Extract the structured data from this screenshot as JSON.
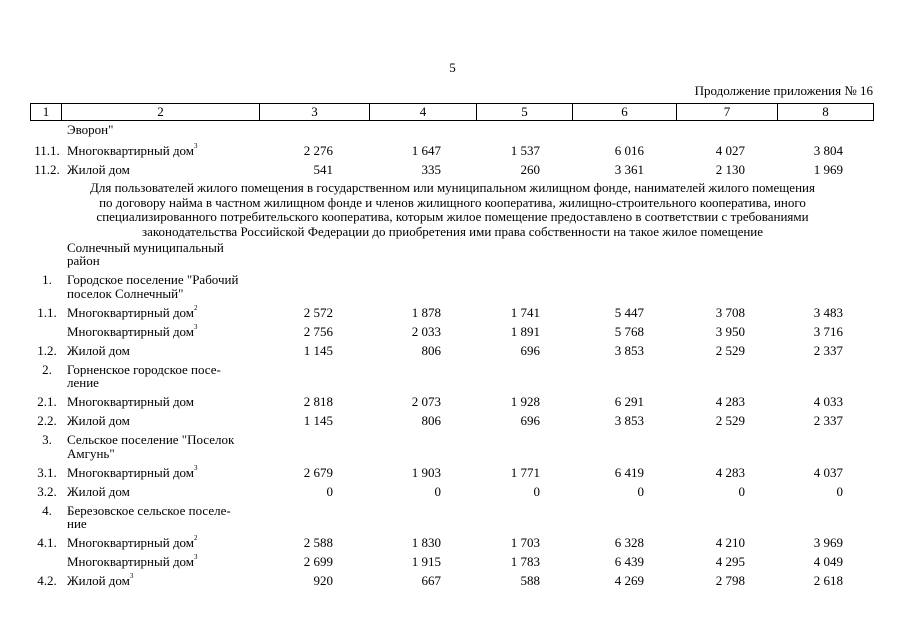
{
  "page_number": "5",
  "continuation": "Продолжение приложения № 16",
  "header": [
    "1",
    "2",
    "3",
    "4",
    "5",
    "6",
    "7",
    "8"
  ],
  "rows": [
    {
      "name": [
        "Эворон\""
      ]
    },
    {
      "num": "11.1.",
      "name": [
        "Многоквартирный дом"
      ],
      "sup": "3",
      "values": [
        "2 276",
        "1 647",
        "1 537",
        "6 016",
        "4 027",
        "3 804"
      ]
    },
    {
      "num": "11.2.",
      "name": [
        "Жилой дом"
      ],
      "values": [
        "541",
        "335",
        "260",
        "3 361",
        "2 130",
        "1 969"
      ]
    },
    {
      "paragraph": [
        "Для пользователей жилого помещения в государственном или муниципальном жилищном фонде, нанимателей жилого помещения",
        "по договору найма в частном жилищном фонде и членов жилищного кооператива, жилищно-строительного кооператива, иного",
        "специализированного потребительского кооператива, которым жилое помещение предоставлено в соответствии с требованиями",
        "законодательства Российской Федерации до приобретения ими права собственности на такое жилое помещение"
      ]
    },
    {
      "name": [
        "Солнечный муниципальный",
        "район"
      ]
    },
    {
      "num": "1.",
      "name": [
        "Городское поселение \"Рабочий",
        "поселок Солнечный\""
      ]
    },
    {
      "num": "1.1.",
      "name": [
        "Многоквартирный дом"
      ],
      "sup": "2",
      "values": [
        "2 572",
        "1 878",
        "1 741",
        "5 447",
        "3 708",
        "3 483"
      ]
    },
    {
      "name": [
        "Многоквартирный дом"
      ],
      "sup": "3",
      "values": [
        "2 756",
        "2 033",
        "1 891",
        "5 768",
        "3 950",
        "3 716"
      ]
    },
    {
      "num": "1.2.",
      "name": [
        "Жилой дом"
      ],
      "values": [
        "1 145",
        "806",
        "696",
        "3 853",
        "2 529",
        "2 337"
      ]
    },
    {
      "num": "2.",
      "name": [
        "Горненское городское посе-",
        "ление"
      ]
    },
    {
      "num": "2.1.",
      "name": [
        "Многоквартирный дом"
      ],
      "values": [
        "2 818",
        "2 073",
        "1 928",
        "6 291",
        "4 283",
        "4 033"
      ]
    },
    {
      "num": "2.2.",
      "name": [
        "Жилой дом"
      ],
      "values": [
        "1 145",
        "806",
        "696",
        "3 853",
        "2 529",
        "2 337"
      ]
    },
    {
      "num": "3.",
      "name": [
        "Сельское поселение \"Поселок",
        "Амгунь\""
      ]
    },
    {
      "num": "3.1.",
      "name": [
        "Многоквартирный дом"
      ],
      "sup": "3",
      "values": [
        "2 679",
        "1 903",
        "1 771",
        "6 419",
        "4 283",
        "4 037"
      ]
    },
    {
      "num": "3.2.",
      "name": [
        "Жилой дом"
      ],
      "values": [
        "0",
        "0",
        "0",
        "0",
        "0",
        "0"
      ]
    },
    {
      "num": "4.",
      "name": [
        "Березовское сельское поселе-",
        "ние"
      ]
    },
    {
      "num": "4.1.",
      "name": [
        "Многоквартирный дом"
      ],
      "sup": "2",
      "values": [
        "2 588",
        "1 830",
        "1 703",
        "6 328",
        "4 210",
        "3 969"
      ]
    },
    {
      "name": [
        "Многоквартирный дом"
      ],
      "sup": "3",
      "values": [
        "2 699",
        "1 915",
        "1 783",
        "6 439",
        "4 295",
        "4 049"
      ]
    },
    {
      "num": "4.2.",
      "name": [
        "Жилой дом"
      ],
      "sup": "3",
      "values": [
        "920",
        "667",
        "588",
        "4 269",
        "2 798",
        "2 618"
      ]
    }
  ]
}
